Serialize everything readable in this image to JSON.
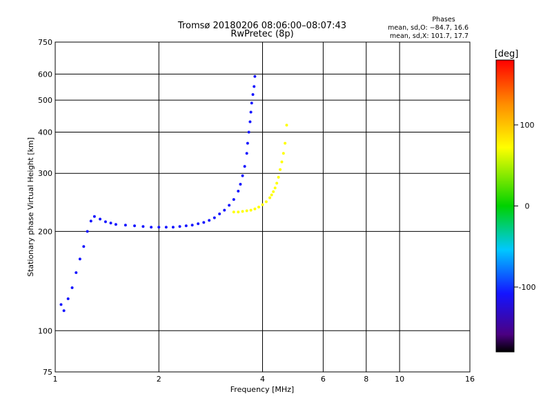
{
  "chart_data": {
    "type": "scatter",
    "title": "Tromsø 20180206 08:06:00–08:07:43",
    "subtitle": "RwPretec (8p)",
    "xlabel": "Frequency [MHz]",
    "ylabel": "Stationary phase Virtual Height [km]",
    "x_scale": "log",
    "y_scale": "log",
    "xlim": [
      1,
      16
    ],
    "ylim": [
      75,
      750
    ],
    "x_ticks": [
      1,
      2,
      4,
      6,
      8,
      10,
      16
    ],
    "x_tick_labels": [
      "1",
      "2",
      "4",
      "6",
      "8",
      "10",
      "16"
    ],
    "y_ticks": [
      75,
      100,
      200,
      300,
      400,
      500,
      600,
      750
    ],
    "y_tick_labels": [
      "75",
      "100",
      "200",
      "300",
      "400",
      "500",
      "600",
      "750"
    ],
    "grid": true,
    "colorbar": {
      "label": "[deg]",
      "range": [
        -180,
        180
      ],
      "ticks": [
        100,
        0,
        -100
      ],
      "tick_labels": [
        "100",
        "0",
        "-100"
      ]
    },
    "info": {
      "heading": "Phases",
      "line1": "mean, sd,O: −84.7, 16.6",
      "line2": "mean, sd,X: 101.7, 17.7"
    },
    "series": [
      {
        "mode": "O",
        "phase_deg": -100,
        "x": [
          1.04,
          1.06,
          1.09,
          1.12,
          1.15,
          1.18,
          1.21,
          1.24,
          1.27,
          1.3,
          1.35,
          1.4,
          1.45,
          1.5,
          1.6,
          1.7,
          1.8,
          1.9,
          2.0,
          2.1,
          2.2,
          2.3,
          2.4,
          2.5,
          2.6,
          2.7,
          2.8,
          2.9,
          3.0,
          3.1,
          3.2,
          3.3,
          3.4,
          3.45,
          3.5,
          3.55,
          3.6,
          3.62,
          3.65,
          3.68,
          3.7,
          3.72,
          3.75,
          3.78,
          3.8
        ],
        "y": [
          120,
          115,
          125,
          135,
          150,
          165,
          180,
          200,
          215,
          222,
          218,
          214,
          212,
          210,
          209,
          208,
          207,
          206,
          206,
          206,
          206,
          207,
          208,
          209,
          211,
          213,
          216,
          220,
          226,
          232,
          240,
          250,
          265,
          278,
          295,
          315,
          345,
          370,
          400,
          430,
          460,
          490,
          520,
          550,
          590
        ]
      },
      {
        "mode": "X",
        "phase_deg": 100,
        "x": [
          3.3,
          3.4,
          3.5,
          3.6,
          3.7,
          3.8,
          3.9,
          4.0,
          4.1,
          4.2,
          4.25,
          4.3,
          4.35,
          4.4,
          4.45,
          4.5,
          4.55,
          4.6,
          4.65,
          4.7
        ],
        "y": [
          229,
          229,
          230,
          231,
          232,
          234,
          237,
          241,
          246,
          253,
          258,
          264,
          271,
          280,
          292,
          308,
          325,
          345,
          370,
          420
        ]
      }
    ]
  }
}
